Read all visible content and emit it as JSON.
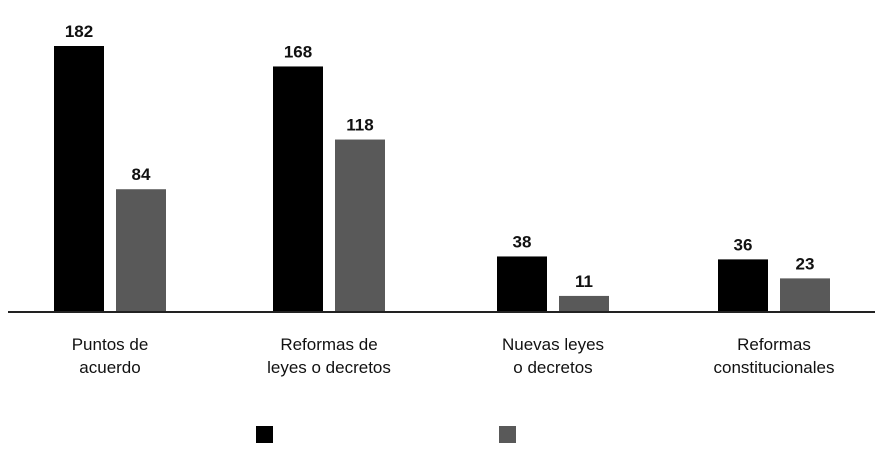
{
  "chart_data": {
    "type": "bar",
    "title": "",
    "xlabel": "",
    "ylabel": "",
    "categories": [
      [
        "Puntos de",
        "acuerdo"
      ],
      [
        "Reformas de",
        "leyes o decretos"
      ],
      [
        "Nuevas leyes",
        "o decretos"
      ],
      [
        "Reformas",
        "constitucionales"
      ]
    ],
    "series": [
      {
        "values": [
          182,
          168,
          38,
          36
        ],
        "color": "#000000"
      },
      {
        "values": [
          84,
          118,
          11,
          23
        ],
        "color": "#595959"
      }
    ],
    "ylim": [
      0,
      182
    ],
    "grid": false,
    "legend": {
      "placement": "bottom",
      "show_names": false
    },
    "data_labels": true
  }
}
